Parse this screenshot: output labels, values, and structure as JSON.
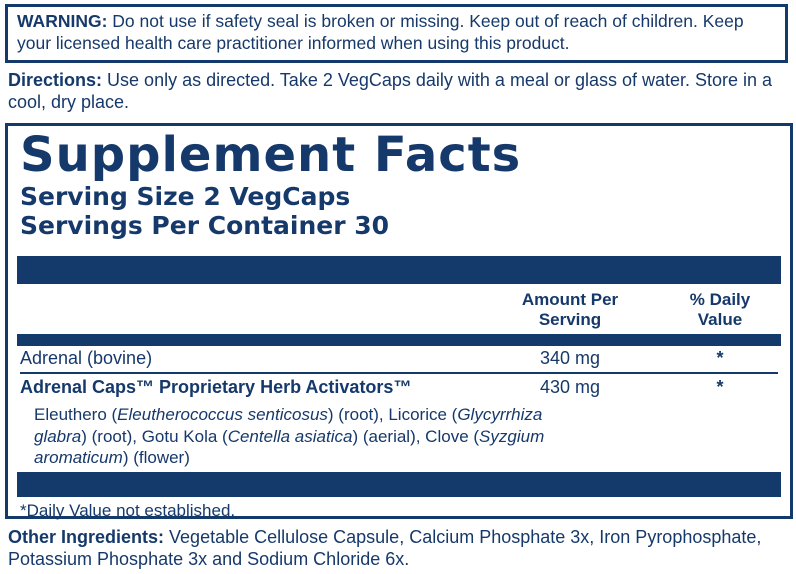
{
  "colors": {
    "navy": "#143A6B",
    "text": "#16396B",
    "background": "#FFFFFF"
  },
  "warning": {
    "label": "WARNING:",
    "text": "Do not use if safety seal is broken or missing. Keep out of reach of children. Keep your licensed health care practitioner informed when using this product."
  },
  "directions": {
    "label": "Directions:",
    "text": "Use only as directed. Take 2 VegCaps daily with a meal or glass of water. Store in a cool, dry place."
  },
  "supplement_facts": {
    "title": "Supplement Facts",
    "serving_size": "Serving Size 2 VegCaps",
    "servings_per_container": "Servings Per Container 30",
    "columns": {
      "amount": "Amount Per Serving",
      "daily_value": "% Daily Value"
    },
    "rows": [
      {
        "name": "Adrenal (bovine)",
        "amount": "340 mg",
        "daily_value": "*"
      },
      {
        "name": "Adrenal Caps™ Proprietary Herb Activators™",
        "amount": "430 mg",
        "daily_value": "*"
      }
    ],
    "sub_ingredients_lines": [
      [
        {
          "t": "Eleuthero (",
          "i": 0
        },
        {
          "t": "Eleutherococcus senticosus",
          "i": 1
        },
        {
          "t": ") (root), Licorice (",
          "i": 0
        },
        {
          "t": "Glycyrrhiza",
          "i": 1
        }
      ],
      [
        {
          "t": "glabra",
          "i": 1
        },
        {
          "t": ") (root), Gotu Kola (",
          "i": 0
        },
        {
          "t": "Centella asiatica",
          "i": 1
        },
        {
          "t": ") (aerial), Clove (",
          "i": 0
        },
        {
          "t": "Syzgium",
          "i": 1
        }
      ],
      [
        {
          "t": "aromaticum",
          "i": 1
        },
        {
          "t": ") (flower)",
          "i": 0
        }
      ]
    ],
    "footnote": "*Daily Value not established."
  },
  "other_ingredients": {
    "label": "Other Ingredients:",
    "text": "Vegetable Cellulose Capsule, Calcium Phosphate 3x, Iron Pyrophosphate, Potassium Phosphate 3x and Sodium Chloride 6x."
  }
}
